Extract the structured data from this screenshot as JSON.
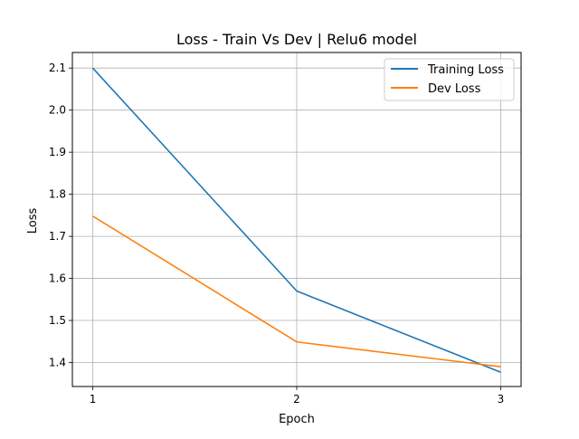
{
  "chart_data": {
    "type": "line",
    "title": "Loss - Train Vs Dev | Relu6 model",
    "xlabel": "Epoch",
    "ylabel": "Loss",
    "x": [
      1,
      2,
      3
    ],
    "x_ticks": [
      "1",
      "2",
      "3"
    ],
    "y_ticks": [
      "1.4",
      "1.5",
      "1.6",
      "1.7",
      "1.8",
      "1.9",
      "2.0",
      "2.1"
    ],
    "xlim": [
      0.9,
      3.1
    ],
    "ylim": [
      1.343,
      2.137
    ],
    "grid": true,
    "legend_position": "top-right",
    "series": [
      {
        "name": "Training Loss",
        "color": "#1f77b4",
        "values": [
          2.1,
          1.57,
          1.377
        ]
      },
      {
        "name": "Dev Loss",
        "color": "#ff7f0e",
        "values": [
          1.748,
          1.449,
          1.39
        ]
      }
    ]
  }
}
